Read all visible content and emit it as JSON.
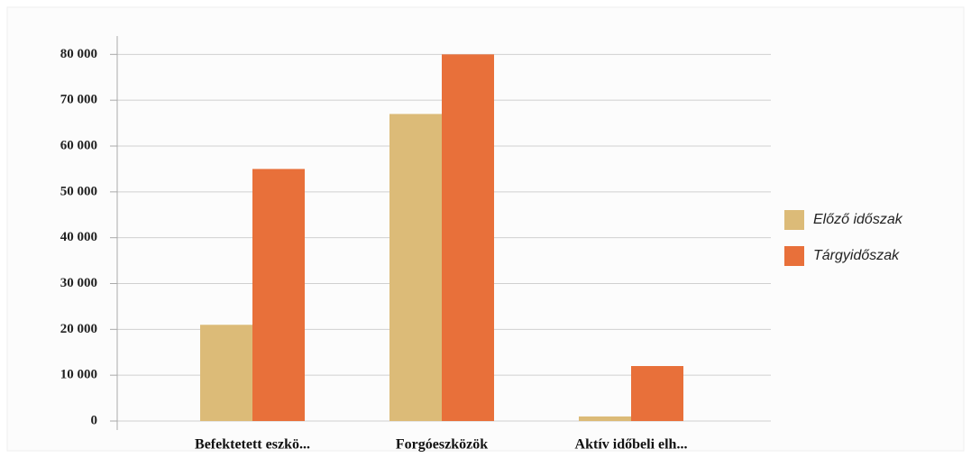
{
  "chart_data": {
    "type": "bar",
    "categories": [
      "Befektetett eszkö...",
      "Forgóeszközök",
      "Aktív időbeli elh..."
    ],
    "series": [
      {
        "name": "Előző időszak",
        "color": "#dcbb78",
        "values": [
          21000,
          67000,
          1000
        ]
      },
      {
        "name": "Tárgyidőszak",
        "color": "#e8703a",
        "values": [
          55000,
          80000,
          12000
        ]
      }
    ],
    "ylim": [
      0,
      84000
    ],
    "yticks": [
      {
        "value": 0,
        "label": "0"
      },
      {
        "value": 10000,
        "label": "10 000"
      },
      {
        "value": 20000,
        "label": "20 000"
      },
      {
        "value": 30000,
        "label": "30 000"
      },
      {
        "value": 40000,
        "label": "40 000"
      },
      {
        "value": 50000,
        "label": "50 000"
      },
      {
        "value": 60000,
        "label": "60 000"
      },
      {
        "value": 70000,
        "label": "70 000"
      },
      {
        "value": 80000,
        "label": "80 000"
      }
    ],
    "grid": true,
    "legend": "right"
  }
}
